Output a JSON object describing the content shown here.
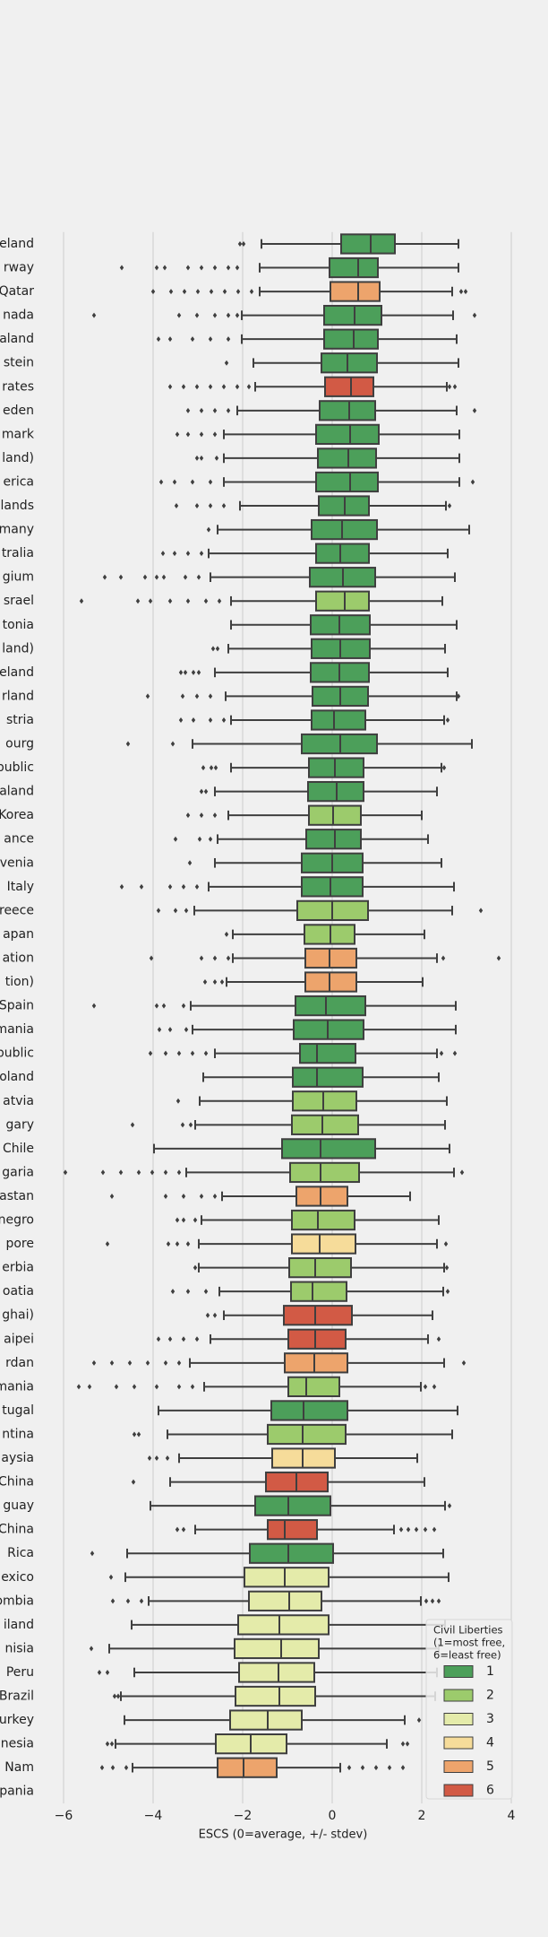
{
  "chart_data": {
    "type": "boxplot",
    "orientation": "horizontal",
    "xlabel": "ESCS (0=average, +/- stdev)",
    "xlim": [
      -6.4,
      4.0
    ],
    "xticks": [
      {
        "value": -6,
        "label": "−6"
      },
      {
        "value": -4,
        "label": "−4"
      },
      {
        "value": -2,
        "label": "−2"
      },
      0,
      2,
      4
    ],
    "grid": true,
    "categories": [
      "eland",
      "rway",
      "Qatar",
      "nada",
      "aland",
      "stein",
      "rates",
      "eden",
      "mark",
      "land)",
      "erica",
      "lands",
      "many",
      "tralia",
      "gium",
      "srael",
      "tonia",
      "land)",
      "eland",
      "rland",
      "stria",
      "ourg",
      "public",
      "aland",
      "Korea",
      "ance",
      "venia",
      "Italy",
      "reece",
      "apan",
      "ation",
      "tion)",
      "Spain",
      "mania",
      "public",
      "oland",
      "atvia",
      "gary",
      "Chile",
      "garia",
      "astan",
      "negro",
      "pore",
      "erbia",
      "oatia",
      "ghai)",
      "aipei",
      "rdan",
      "mania",
      "tugal",
      "ntina",
      "aysia",
      "China",
      "guay",
      "China",
      "Rica",
      "exico",
      "ombia",
      "iland",
      "nisia",
      "Peru",
      "Brazil",
      "urkey",
      "nesia",
      "Nam",
      "pania"
    ],
    "liberty": [
      1,
      1,
      5,
      1,
      1,
      1,
      6,
      1,
      1,
      1,
      1,
      1,
      1,
      1,
      1,
      2,
      1,
      1,
      1,
      1,
      1,
      1,
      1,
      1,
      2,
      1,
      1,
      1,
      2,
      2,
      5,
      5,
      1,
      1,
      1,
      1,
      2,
      2,
      1,
      2,
      5,
      2,
      4,
      2,
      2,
      6,
      6,
      5,
      2,
      1,
      2,
      4,
      6,
      1,
      6,
      1,
      3,
      3,
      3,
      3,
      3,
      3,
      3,
      3,
      5,
      null
    ],
    "stats": [
      [
        -1.58,
        0.2,
        0.86,
        1.4,
        2.82
      ],
      [
        -1.62,
        -0.06,
        0.58,
        1.02,
        2.82
      ],
      [
        -1.62,
        -0.04,
        0.58,
        1.06,
        2.68
      ],
      [
        -2.02,
        -0.18,
        0.5,
        1.1,
        2.7
      ],
      [
        -2.02,
        -0.18,
        0.48,
        1.02,
        2.78
      ],
      [
        -1.76,
        -0.24,
        0.34,
        1.0,
        2.82
      ],
      [
        -1.72,
        -0.16,
        0.42,
        0.92,
        2.56
      ],
      [
        -2.12,
        -0.28,
        0.38,
        0.96,
        2.78
      ],
      [
        -2.42,
        -0.36,
        0.4,
        1.04,
        2.84
      ],
      [
        -2.42,
        -0.32,
        0.36,
        0.98,
        2.84
      ],
      [
        -2.42,
        -0.36,
        0.4,
        1.02,
        2.84
      ],
      [
        -2.06,
        -0.3,
        0.28,
        0.82,
        2.54
      ],
      [
        -2.56,
        -0.46,
        0.22,
        1.0,
        3.06
      ],
      [
        -2.76,
        -0.36,
        0.18,
        0.82,
        2.58
      ],
      [
        -2.72,
        -0.5,
        0.24,
        0.96,
        2.74
      ],
      [
        -2.26,
        -0.36,
        0.28,
        0.82,
        2.46
      ],
      [
        -2.26,
        -0.48,
        0.16,
        0.84,
        2.78
      ],
      [
        -2.32,
        -0.46,
        0.18,
        0.84,
        2.52
      ],
      [
        -2.62,
        -0.48,
        0.16,
        0.82,
        2.58
      ],
      [
        -2.38,
        -0.44,
        0.18,
        0.8,
        2.78
      ],
      [
        -2.26,
        -0.46,
        0.04,
        0.74,
        2.5
      ],
      [
        -3.12,
        -0.68,
        0.18,
        1.0,
        3.12
      ],
      [
        -2.26,
        -0.52,
        0.06,
        0.7,
        2.44
      ],
      [
        -2.62,
        -0.54,
        0.1,
        0.7,
        2.34
      ],
      [
        -2.32,
        -0.52,
        0.02,
        0.64,
        2.0
      ],
      [
        -2.56,
        -0.58,
        0.06,
        0.64,
        2.14
      ],
      [
        -2.62,
        -0.68,
        0.0,
        0.68,
        2.44
      ],
      [
        -2.76,
        -0.68,
        -0.04,
        0.68,
        2.72
      ],
      [
        -3.08,
        -0.78,
        0.0,
        0.8,
        2.68
      ],
      [
        -2.22,
        -0.62,
        -0.04,
        0.5,
        2.06
      ],
      [
        -2.22,
        -0.6,
        -0.06,
        0.54,
        2.34
      ],
      [
        -2.36,
        -0.6,
        -0.06,
        0.54,
        2.02
      ],
      [
        -3.16,
        -0.82,
        -0.14,
        0.74,
        2.76
      ],
      [
        -3.12,
        -0.86,
        -0.1,
        0.7,
        2.76
      ],
      [
        -2.62,
        -0.72,
        -0.34,
        0.52,
        2.34
      ],
      [
        -2.88,
        -0.88,
        -0.34,
        0.68,
        2.38
      ],
      [
        -2.96,
        -0.88,
        -0.2,
        0.54,
        2.56
      ],
      [
        -3.06,
        -0.9,
        -0.22,
        0.58,
        2.52
      ],
      [
        -3.98,
        -1.12,
        -0.26,
        0.96,
        2.62
      ],
      [
        -3.26,
        -0.94,
        -0.26,
        0.6,
        2.72
      ],
      [
        -2.46,
        -0.8,
        -0.26,
        0.34,
        1.74
      ],
      [
        -2.92,
        -0.9,
        -0.32,
        0.5,
        2.38
      ],
      [
        -2.98,
        -0.9,
        -0.28,
        0.52,
        2.34
      ],
      [
        -2.98,
        -0.96,
        -0.38,
        0.42,
        2.5
      ],
      [
        -2.52,
        -0.92,
        -0.44,
        0.32,
        2.48
      ],
      [
        -2.42,
        -1.08,
        -0.38,
        0.44,
        2.24
      ],
      [
        -2.72,
        -0.98,
        -0.38,
        0.3,
        2.14
      ],
      [
        -3.18,
        -1.06,
        -0.4,
        0.34,
        2.5
      ],
      [
        -2.86,
        -0.98,
        -0.58,
        0.16,
        1.98
      ],
      [
        -3.88,
        -1.36,
        -0.64,
        0.34,
        2.8
      ],
      [
        -3.68,
        -1.44,
        -0.66,
        0.3,
        2.68
      ],
      [
        -3.42,
        -1.34,
        -0.66,
        0.06,
        1.9
      ],
      [
        -3.62,
        -1.48,
        -0.8,
        -0.1,
        2.06
      ],
      [
        -4.06,
        -1.72,
        -0.98,
        -0.04,
        2.52
      ],
      [
        -3.06,
        -1.44,
        -1.06,
        -0.34,
        1.38
      ],
      [
        -4.58,
        -1.84,
        -0.98,
        0.02,
        2.48
      ],
      [
        -4.62,
        -1.96,
        -1.06,
        -0.08,
        2.6
      ],
      [
        -4.1,
        -1.86,
        -0.96,
        -0.24,
        1.98
      ],
      [
        -4.48,
        -2.1,
        -1.18,
        -0.08,
        2.52
      ],
      [
        -4.98,
        -2.18,
        -1.14,
        -0.3,
        2.38
      ],
      [
        -4.42,
        -2.08,
        -1.2,
        -0.4,
        2.34
      ],
      [
        -4.72,
        -2.16,
        -1.18,
        -0.38,
        2.3
      ],
      [
        -4.64,
        -2.28,
        -1.44,
        -0.68,
        1.62
      ],
      [
        -4.84,
        -2.6,
        -1.82,
        -1.02,
        1.22
      ],
      [
        -4.46,
        -2.56,
        -1.98,
        -1.24,
        0.18
      ],
      null
    ],
    "outliers": [
      [
        -2.06,
        -1.98
      ],
      [
        -4.7,
        -3.92,
        -3.74,
        -3.22,
        -2.92,
        -2.62,
        -2.32,
        -2.12
      ],
      [
        -4.0,
        -3.6,
        -3.3,
        -3.0,
        -2.7,
        -2.4,
        -2.1,
        -1.8,
        2.88,
        2.98
      ],
      [
        -5.32,
        -3.42,
        -3.02,
        -2.62,
        -2.32,
        -2.12,
        3.18
      ],
      [
        -3.88,
        -3.62,
        -3.12,
        -2.72,
        -2.32
      ],
      [
        -2.36
      ],
      [
        -3.62,
        -3.32,
        -3.02,
        -2.72,
        -2.42,
        -2.12,
        -1.86,
        2.62,
        2.74
      ],
      [
        -3.22,
        -2.92,
        -2.62,
        -2.32,
        3.18
      ],
      [
        -3.46,
        -3.22,
        -2.92,
        -2.62
      ],
      [
        -3.02,
        -2.92,
        -2.58
      ],
      [
        -3.82,
        -3.52,
        -3.12,
        -2.72,
        3.14
      ],
      [
        -3.48,
        -3.02,
        -2.72,
        -2.42,
        2.62
      ],
      [
        -2.76
      ],
      [
        -3.78,
        -3.52,
        -3.22,
        -2.92
      ],
      [
        -5.08,
        -4.72,
        -4.18,
        -3.92,
        -3.76,
        -3.28,
        -2.98
      ],
      [
        -5.6,
        -4.34,
        -4.06,
        -3.62,
        -3.22,
        -2.82,
        -2.52
      ],
      [],
      [
        -2.66,
        -2.56
      ],
      [
        -3.38,
        -3.28,
        -3.1,
        -2.98
      ],
      [
        -4.12,
        -3.34,
        -3.02,
        -2.72,
        2.82
      ],
      [
        -3.38,
        -3.1,
        -2.72,
        -2.42,
        2.58
      ],
      [
        -4.56,
        -3.56
      ],
      [
        -2.88,
        -2.7,
        -2.6,
        2.5
      ],
      [
        -2.92,
        -2.82
      ],
      [
        -3.22,
        -2.92,
        -2.62
      ],
      [
        -3.5,
        -2.96,
        -2.72
      ],
      [
        -3.18
      ],
      [
        -4.7,
        -4.26,
        -3.62,
        -3.32,
        -3.02
      ],
      [
        -3.88,
        -3.5,
        -3.26,
        3.32
      ],
      [
        -2.36
      ],
      [
        -4.04,
        -2.92,
        -2.62,
        -2.32,
        2.48,
        3.72
      ],
      [
        -2.84,
        -2.62,
        -2.46
      ],
      [
        -5.32,
        -3.92,
        -3.76,
        -3.32
      ],
      [
        -3.86,
        -3.62,
        -3.26
      ],
      [
        -4.06,
        -3.72,
        -3.42,
        -3.12,
        -2.82,
        2.44,
        2.74
      ],
      [],
      [
        -3.44
      ],
      [
        -4.46,
        -3.34,
        -3.16
      ],
      [],
      [
        -5.96,
        -5.12,
        -4.72,
        -4.32,
        -4.02,
        -3.72,
        -3.42,
        2.9
      ],
      [
        -4.92,
        -3.72,
        -3.32,
        -2.92,
        -2.62
      ],
      [
        -3.46,
        -3.32,
        -3.06
      ],
      [
        -5.02,
        -3.66,
        -3.46,
        -3.22,
        2.54
      ],
      [
        -3.06,
        2.56
      ],
      [
        -3.56,
        -3.22,
        -2.82,
        2.58
      ],
      [
        -2.78,
        -2.62
      ],
      [
        -3.88,
        -3.62,
        -3.32,
        -3.02,
        2.38
      ],
      [
        -5.32,
        -4.92,
        -4.52,
        -4.12,
        -3.72,
        -3.42,
        2.94
      ],
      [
        -5.66,
        -5.42,
        -4.82,
        -4.42,
        -3.92,
        -3.42,
        -3.12,
        2.08,
        2.28
      ],
      [],
      [
        -4.42,
        -4.32
      ],
      [
        -4.08,
        -3.92,
        -3.68
      ],
      [
        -4.44
      ],
      [
        2.62
      ],
      [
        -3.46,
        -3.32,
        1.54,
        1.7,
        1.88,
        2.08,
        2.28
      ],
      [
        -5.36
      ],
      [
        -4.94
      ],
      [
        -4.9,
        -4.56,
        -4.26,
        2.1,
        2.24,
        2.38
      ],
      [],
      [
        -5.38
      ],
      [
        -5.2,
        -5.02
      ],
      [
        -4.86,
        -4.78
      ],
      [
        1.94
      ],
      [
        -5.02,
        -4.92,
        1.58,
        1.68
      ],
      [
        -5.14,
        -4.9,
        -4.6,
        0.38,
        0.68,
        0.98,
        1.28,
        1.58
      ],
      []
    ],
    "legend": {
      "title": [
        "Civil Liberties",
        "(1=most free,",
        "6=least free)"
      ],
      "labels": [
        "1",
        "2",
        "3",
        "4",
        "5",
        "6"
      ],
      "colors": [
        "#4c9f5a",
        "#9ccb6c",
        "#e4ebaa",
        "#f6dc9a",
        "#eda46c",
        "#d25a45"
      ],
      "corner": "lower right"
    }
  }
}
